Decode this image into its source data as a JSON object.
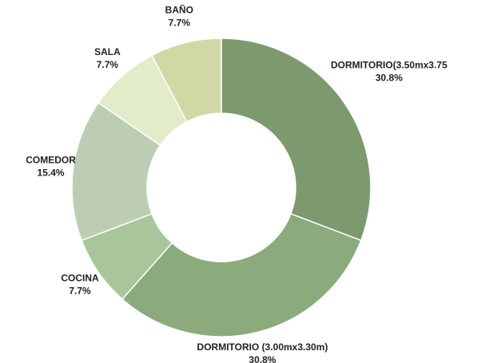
{
  "chart_data": {
    "type": "donut",
    "categories": [
      "DORMITORIO(3.50mx3.75",
      "DORMITORIO (3.00mx3.30m)",
      "COCINA",
      "COMEDOR",
      "SALA",
      "BAÑO"
    ],
    "values": [
      30.8,
      30.8,
      7.7,
      15.4,
      7.7,
      7.7
    ],
    "value_labels": [
      "30.8%",
      "30.8%",
      "7.7%",
      "15.4%",
      "7.7%",
      "7.7%"
    ],
    "colors": [
      "#7c9a6e",
      "#8bab7c",
      "#a8c69a",
      "#bccdb3",
      "#e3ecc9",
      "#d0d9a6"
    ]
  }
}
